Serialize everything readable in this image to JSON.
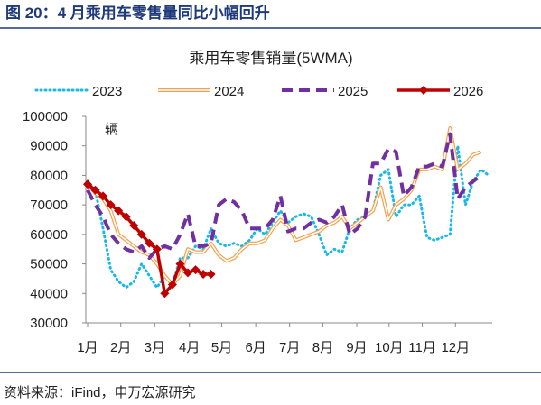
{
  "header": {
    "title": "图 20：4 月乘用车零售量同比小幅回升"
  },
  "footer": {
    "source": "资料来源：iFind，申万宏源研究"
  },
  "chart_data": {
    "type": "line",
    "title": "乘用车零售销量(5WMA)",
    "ylabel": "辆",
    "x": [
      1,
      2,
      3,
      4,
      5,
      6,
      7,
      8,
      9,
      10,
      11,
      12,
      13,
      14,
      15,
      16,
      17,
      18,
      19,
      20,
      21,
      22,
      23,
      24,
      25,
      26,
      27,
      28,
      29,
      30,
      31,
      32,
      33,
      34,
      35,
      36,
      37,
      38,
      39,
      40,
      41,
      42,
      43,
      44,
      45,
      46,
      47,
      48,
      49,
      50,
      51,
      52,
      53
    ],
    "xlim": [
      1,
      53
    ],
    "xticks": [
      {
        "value": 1,
        "label": "1月"
      },
      {
        "value": 5.3,
        "label": "2月"
      },
      {
        "value": 9.7,
        "label": "3月"
      },
      {
        "value": 14.2,
        "label": "4月"
      },
      {
        "value": 18.4,
        "label": "5月"
      },
      {
        "value": 22.8,
        "label": "6月"
      },
      {
        "value": 27.2,
        "label": "7月"
      },
      {
        "value": 31.5,
        "label": "8月"
      },
      {
        "value": 35.9,
        "label": "9月"
      },
      {
        "value": 40.1,
        "label": "10月"
      },
      {
        "value": 44.4,
        "label": "11月"
      },
      {
        "value": 48.7,
        "label": "12月"
      }
    ],
    "ylim": [
      30000,
      100000
    ],
    "yticks": [
      30000,
      40000,
      50000,
      60000,
      70000,
      80000,
      90000,
      100000
    ],
    "grid": false,
    "legend": "top",
    "series": [
      {
        "name": "2023",
        "color": "#1ab8e8",
        "style": "dotted",
        "values": [
          78000,
          75000,
          62000,
          48000,
          44000,
          42000,
          44000,
          50000,
          46000,
          42000,
          46000,
          43000,
          52000,
          52000,
          56000,
          55000,
          62000,
          57000,
          56000,
          57000,
          56000,
          58000,
          62000,
          60000,
          64000,
          68000,
          64000,
          66000,
          67000,
          66000,
          60000,
          53000,
          55000,
          54000,
          62000,
          65000,
          66000,
          68000,
          80000,
          82000,
          66000,
          70000,
          70000,
          73000,
          59000,
          58000,
          59000,
          60000,
          90000,
          70000,
          78000,
          82000,
          80000
        ]
      },
      {
        "name": "2024",
        "color": "#f5a04a",
        "style": "double",
        "values": [
          77000,
          74000,
          72000,
          68000,
          60000,
          58000,
          56000,
          54000,
          53000,
          50000,
          46000,
          43000,
          46000,
          55000,
          54000,
          54000,
          57000,
          53000,
          51000,
          52000,
          55000,
          57000,
          57000,
          58000,
          62000,
          65000,
          63000,
          58000,
          59000,
          60000,
          61000,
          63000,
          64000,
          66000,
          62000,
          64000,
          66000,
          68000,
          76000,
          65000,
          70000,
          72000,
          75000,
          82000,
          82000,
          83000,
          82000,
          96000,
          82000,
          84000,
          87000,
          88000,
          null
        ]
      },
      {
        "name": "2025",
        "color": "#7030a0",
        "style": "dashed",
        "values": [
          75000,
          70000,
          66000,
          60000,
          57000,
          55000,
          54000,
          56000,
          52000,
          55000,
          56000,
          55000,
          60000,
          67000,
          56000,
          56000,
          57000,
          70000,
          72000,
          71000,
          68000,
          62000,
          62000,
          62000,
          65000,
          73000,
          61000,
          62000,
          62000,
          64000,
          65000,
          64000,
          66000,
          70000,
          60000,
          62000,
          66000,
          84000,
          84000,
          89000,
          88000,
          73000,
          76000,
          83000,
          83000,
          84000,
          83000,
          94000,
          72000,
          76000,
          78000,
          80000,
          null
        ]
      },
      {
        "name": "2026",
        "color": "#c00000",
        "style": "marker",
        "values": [
          77000,
          75000,
          73000,
          70000,
          68000,
          66000,
          63000,
          60000,
          57000,
          55000,
          40000,
          43000,
          50000,
          47000,
          48000,
          46500,
          46500,
          null,
          null,
          null,
          null,
          null,
          null,
          null,
          null,
          null,
          null,
          null,
          null,
          null,
          null,
          null,
          null,
          null,
          null,
          null,
          null,
          null,
          null,
          null,
          null,
          null,
          null,
          null,
          null,
          null,
          null,
          null,
          null,
          null,
          null,
          null,
          null
        ]
      }
    ]
  }
}
